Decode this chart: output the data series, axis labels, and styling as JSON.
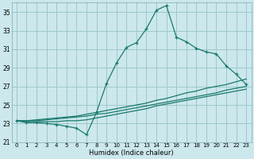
{
  "xlabel": "Humidex (Indice chaleur)",
  "bg_color": "#cce8ec",
  "grid_color": "#9dc8cc",
  "line_color": "#1a7a6e",
  "xlim": [
    -0.5,
    23.5
  ],
  "ylim": [
    21,
    36
  ],
  "yticks": [
    21,
    23,
    25,
    27,
    29,
    31,
    33,
    35
  ],
  "xticks": [
    0,
    1,
    2,
    3,
    4,
    5,
    6,
    7,
    8,
    9,
    10,
    11,
    12,
    13,
    14,
    15,
    16,
    17,
    18,
    19,
    20,
    21,
    22,
    23
  ],
  "line1_x": [
    0,
    1,
    2,
    3,
    4,
    5,
    6,
    7,
    8,
    9,
    10,
    11,
    12,
    13,
    14,
    15,
    16,
    17,
    18,
    19,
    20,
    21,
    22,
    23
  ],
  "line1_y": [
    23.3,
    23.1,
    23.1,
    23.0,
    22.9,
    22.7,
    22.5,
    21.8,
    24.2,
    27.3,
    29.5,
    31.2,
    31.7,
    33.2,
    35.2,
    35.7,
    32.3,
    31.8,
    31.1,
    30.7,
    30.5,
    29.2,
    28.3,
    27.2
  ],
  "line2_x": [
    0,
    1,
    2,
    3,
    4,
    5,
    6,
    7,
    8,
    9,
    10,
    11,
    12,
    13,
    14,
    15,
    16,
    17,
    18,
    19,
    20,
    21,
    22,
    23
  ],
  "line2_y": [
    23.3,
    23.3,
    23.4,
    23.5,
    23.6,
    23.7,
    23.8,
    24.0,
    24.2,
    24.4,
    24.6,
    24.8,
    25.0,
    25.2,
    25.5,
    25.7,
    26.0,
    26.3,
    26.5,
    26.8,
    27.0,
    27.2,
    27.5,
    27.8
  ],
  "line3_x": [
    0,
    1,
    2,
    3,
    4,
    5,
    6,
    7,
    8,
    9,
    10,
    11,
    12,
    13,
    14,
    15,
    16,
    17,
    18,
    19,
    20,
    21,
    22,
    23
  ],
  "line3_y": [
    23.3,
    23.3,
    23.3,
    23.4,
    23.5,
    23.6,
    23.7,
    23.8,
    24.0,
    24.1,
    24.3,
    24.5,
    24.7,
    24.9,
    25.1,
    25.3,
    25.5,
    25.7,
    25.9,
    26.1,
    26.3,
    26.6,
    26.8,
    27.0
  ],
  "line4_x": [
    0,
    1,
    2,
    3,
    4,
    5,
    6,
    7,
    8,
    9,
    10,
    11,
    12,
    13,
    14,
    15,
    16,
    17,
    18,
    19,
    20,
    21,
    22,
    23
  ],
  "line4_y": [
    23.3,
    23.2,
    23.2,
    23.2,
    23.2,
    23.3,
    23.3,
    23.4,
    23.6,
    23.8,
    24.0,
    24.2,
    24.4,
    24.6,
    24.9,
    25.1,
    25.3,
    25.5,
    25.7,
    25.9,
    26.1,
    26.3,
    26.5,
    26.7
  ],
  "xlabel_fontsize": 6,
  "tick_fontsize": 5,
  "marker_size": 3
}
